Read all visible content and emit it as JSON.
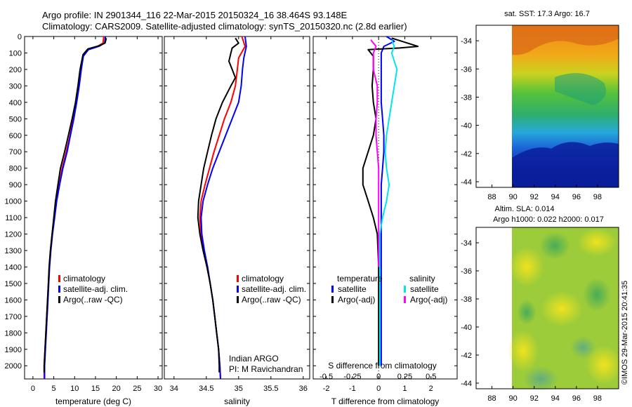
{
  "header": {
    "title_line1": "Argo profile: IN 2901344_116 22-Mar-2015 20150324_16 38.464S 93.148E",
    "title_line2": "Climatology: CARS2009. Satellite-adjusted climatology: synTS_20150320.nc (2.8d earlier)"
  },
  "credit": "©IMOS 29-Mar-2015 20:41:35",
  "colors": {
    "climatology": "#ff0000",
    "satellite": "#0000ff",
    "argo": "#000000",
    "salinity_sat": "#00e5ee",
    "salinity_argo": "#ff00ff"
  },
  "chart_data": [
    {
      "type": "line",
      "id": "temperature",
      "xlabel": "temperature (deg C)",
      "ylabel": "",
      "xlim": [
        -2,
        31
      ],
      "ylim": [
        2080,
        0
      ],
      "xticks": [
        "0",
        "5",
        "10",
        "15",
        "20",
        "25",
        "30"
      ],
      "yticks": [
        "0",
        "100",
        "200",
        "300",
        "400",
        "500",
        "600",
        "700",
        "800",
        "900",
        "1000",
        "1100",
        "1200",
        "1300",
        "1400",
        "1500",
        "1600",
        "1700",
        "1800",
        "1900",
        "2000"
      ],
      "legend": [
        "climatology",
        "satellite-adj. clim.",
        "Argo(..raw -QC)"
      ],
      "series": [
        {
          "name": "climatology",
          "color": "#ff0000",
          "points": [
            [
              17.0,
              0
            ],
            [
              16.8,
              40
            ],
            [
              15.5,
              60
            ],
            [
              13.0,
              80
            ],
            [
              12.0,
              120
            ],
            [
              11.5,
              200
            ],
            [
              11.0,
              300
            ],
            [
              10.4,
              400
            ],
            [
              9.6,
              500
            ],
            [
              8.9,
              600
            ],
            [
              8.0,
              700
            ],
            [
              7.0,
              800
            ],
            [
              6.3,
              900
            ],
            [
              5.6,
              1000
            ],
            [
              5.1,
              1100
            ],
            [
              4.6,
              1200
            ],
            [
              4.2,
              1300
            ],
            [
              3.9,
              1400
            ],
            [
              3.7,
              1500
            ],
            [
              3.5,
              1600
            ],
            [
              3.3,
              1700
            ],
            [
              3.1,
              1800
            ],
            [
              2.9,
              1900
            ],
            [
              2.7,
              2000
            ],
            [
              2.7,
              2080
            ]
          ]
        },
        {
          "name": "satellite-adj. clim.",
          "color": "#0000ff",
          "points": [
            [
              17.4,
              0
            ],
            [
              17.2,
              40
            ],
            [
              15.8,
              60
            ],
            [
              13.3,
              80
            ],
            [
              12.1,
              120
            ],
            [
              11.6,
              200
            ],
            [
              11.1,
              300
            ],
            [
              10.5,
              400
            ],
            [
              9.8,
              500
            ],
            [
              9.0,
              600
            ],
            [
              8.2,
              700
            ],
            [
              7.2,
              800
            ],
            [
              6.4,
              900
            ],
            [
              5.7,
              1000
            ],
            [
              5.2,
              1100
            ],
            [
              4.7,
              1200
            ],
            [
              4.3,
              1300
            ],
            [
              4.0,
              1400
            ],
            [
              3.8,
              1500
            ],
            [
              3.6,
              1600
            ],
            [
              3.4,
              1700
            ],
            [
              3.2,
              1800
            ],
            [
              3.0,
              1900
            ],
            [
              2.8,
              2000
            ],
            [
              2.8,
              2080
            ]
          ]
        },
        {
          "name": "Argo(..raw -QC)",
          "color": "#000000",
          "points": [
            [
              17.6,
              10
            ],
            [
              17.3,
              40
            ],
            [
              16.0,
              55
            ],
            [
              13.2,
              75
            ],
            [
              12.0,
              110
            ],
            [
              11.3,
              200
            ],
            [
              10.8,
              300
            ],
            [
              10.2,
              400
            ],
            [
              9.4,
              500
            ],
            [
              8.5,
              600
            ],
            [
              7.6,
              700
            ],
            [
              6.6,
              800
            ],
            [
              6.0,
              900
            ],
            [
              5.4,
              1000
            ],
            [
              5.0,
              1100
            ],
            [
              4.6,
              1200
            ],
            [
              4.2,
              1300
            ],
            [
              3.9,
              1400
            ],
            [
              3.7,
              1500
            ],
            [
              3.5,
              1600
            ],
            [
              3.3,
              1700
            ],
            [
              3.1,
              1800
            ],
            [
              2.9,
              1900
            ],
            [
              2.7,
              2000
            ],
            [
              2.7,
              2040
            ]
          ]
        }
      ]
    },
    {
      "type": "line",
      "id": "salinity",
      "xlabel": "salinity",
      "ylabel": "",
      "xlim": [
        33.85,
        36.1
      ],
      "ylim": [
        2080,
        0
      ],
      "xticks": [
        "34",
        "34.5",
        "35",
        "35.5",
        "36"
      ],
      "legend": [
        "climatology",
        "satellite-adj. clim.",
        "Argo(..raw -QC)"
      ],
      "annotation": [
        "Indian ARGO",
        "PI: M Ravichandran"
      ],
      "series": [
        {
          "name": "climatology",
          "color": "#ff0000",
          "points": [
            [
              35.05,
              0
            ],
            [
              35.1,
              60
            ],
            [
              35.0,
              130
            ],
            [
              34.98,
              200
            ],
            [
              34.95,
              300
            ],
            [
              34.88,
              400
            ],
            [
              34.78,
              500
            ],
            [
              34.7,
              600
            ],
            [
              34.62,
              700
            ],
            [
              34.55,
              800
            ],
            [
              34.48,
              900
            ],
            [
              34.42,
              1000
            ],
            [
              34.4,
              1100
            ],
            [
              34.42,
              1200
            ],
            [
              34.46,
              1300
            ],
            [
              34.52,
              1400
            ],
            [
              34.56,
              1500
            ],
            [
              34.6,
              1600
            ],
            [
              34.63,
              1700
            ],
            [
              34.66,
              1800
            ],
            [
              34.69,
              1900
            ],
            [
              34.71,
              2000
            ],
            [
              34.72,
              2080
            ]
          ]
        },
        {
          "name": "satellite-adj. clim.",
          "color": "#0000ff",
          "points": [
            [
              35.1,
              0
            ],
            [
              35.12,
              60
            ],
            [
              35.08,
              130
            ],
            [
              35.06,
              200
            ],
            [
              35.04,
              300
            ],
            [
              35.0,
              400
            ],
            [
              34.9,
              500
            ],
            [
              34.8,
              600
            ],
            [
              34.7,
              700
            ],
            [
              34.6,
              800
            ],
            [
              34.52,
              900
            ],
            [
              34.45,
              1000
            ],
            [
              34.42,
              1100
            ],
            [
              34.43,
              1200
            ],
            [
              34.47,
              1300
            ],
            [
              34.52,
              1400
            ],
            [
              34.56,
              1500
            ],
            [
              34.6,
              1600
            ],
            [
              34.63,
              1700
            ],
            [
              34.66,
              1800
            ],
            [
              34.69,
              1900
            ],
            [
              34.71,
              2000
            ],
            [
              34.72,
              2080
            ]
          ]
        },
        {
          "name": "Argo(..raw -QC)",
          "color": "#000000",
          "points": [
            [
              34.95,
              10
            ],
            [
              35.0,
              40
            ],
            [
              34.9,
              70
            ],
            [
              34.88,
              100
            ],
            [
              34.85,
              150
            ],
            [
              34.9,
              200
            ],
            [
              34.95,
              250
            ],
            [
              34.88,
              300
            ],
            [
              34.75,
              400
            ],
            [
              34.65,
              500
            ],
            [
              34.58,
              600
            ],
            [
              34.52,
              700
            ],
            [
              34.46,
              800
            ],
            [
              34.42,
              900
            ],
            [
              34.38,
              1000
            ],
            [
              34.37,
              1100
            ],
            [
              34.4,
              1200
            ],
            [
              34.45,
              1300
            ],
            [
              34.51,
              1400
            ],
            [
              34.56,
              1500
            ],
            [
              34.6,
              1600
            ],
            [
              34.63,
              1700
            ],
            [
              34.66,
              1800
            ],
            [
              34.69,
              1900
            ],
            [
              34.7,
              2000
            ],
            [
              34.7,
              2040
            ]
          ]
        }
      ]
    },
    {
      "type": "line",
      "id": "difference",
      "xlabel": "T difference from climatology",
      "xlabel_top": "S difference from climatology",
      "xlim": [
        -2.5,
        3.0
      ],
      "ylim": [
        2080,
        0
      ],
      "xticks": [
        "-2",
        "-1",
        "0",
        "1",
        "2"
      ],
      "xticks_top": [
        "-0.5",
        "-0.25",
        "0",
        "0.25",
        "0.5"
      ],
      "legend_headers": [
        "temperature",
        "salinity"
      ],
      "legend": [
        "satellite",
        "Argo(-adj)",
        "satellite",
        "Argo(-adj)"
      ],
      "series": [
        {
          "name": "temperature satellite",
          "color": "#0000ff",
          "points": [
            [
              0.3,
              0
            ],
            [
              0.6,
              30
            ],
            [
              0.2,
              60
            ],
            [
              0.1,
              100
            ],
            [
              0.1,
              200
            ],
            [
              0.1,
              300
            ],
            [
              0.1,
              400
            ],
            [
              0.15,
              500
            ],
            [
              0.2,
              600
            ],
            [
              0.2,
              700
            ],
            [
              0.15,
              800
            ],
            [
              0.1,
              900
            ],
            [
              0.1,
              1000
            ],
            [
              0.1,
              1100
            ],
            [
              0.1,
              1200
            ],
            [
              0.1,
              1400
            ],
            [
              0.1,
              1600
            ],
            [
              0.1,
              1800
            ],
            [
              0.1,
              2000
            ]
          ]
        },
        {
          "name": "temperature Argo(-adj)",
          "color": "#000000",
          "points": [
            [
              0.5,
              10
            ],
            [
              1.5,
              60
            ],
            [
              0.8,
              70
            ],
            [
              -0.4,
              80
            ],
            [
              -0.2,
              120
            ],
            [
              -0.2,
              200
            ],
            [
              -0.25,
              300
            ],
            [
              -0.2,
              400
            ],
            [
              -0.1,
              500
            ],
            [
              -0.2,
              600
            ],
            [
              -0.4,
              700
            ],
            [
              -0.6,
              800
            ],
            [
              -0.6,
              900
            ],
            [
              -0.4,
              1000
            ],
            [
              -0.2,
              1100
            ],
            [
              -0.05,
              1200
            ],
            [
              0,
              1400
            ],
            [
              0,
              1600
            ],
            [
              0,
              1800
            ],
            [
              0,
              2000
            ]
          ]
        },
        {
          "name": "salinity satellite",
          "color": "#00e5ee",
          "points": [
            [
              0.5,
              20
            ],
            [
              0.6,
              60
            ],
            [
              0.5,
              100
            ],
            [
              0.7,
              200
            ],
            [
              0.6,
              300
            ],
            [
              0.5,
              400
            ],
            [
              0.4,
              500
            ],
            [
              0.3,
              600
            ],
            [
              0.25,
              700
            ],
            [
              0.3,
              800
            ],
            [
              0.4,
              900
            ],
            [
              0.3,
              1000
            ],
            [
              0.15,
              1100
            ],
            [
              0.05,
              1200
            ],
            [
              0.05,
              1400
            ],
            [
              0.05,
              1600
            ],
            [
              0.05,
              1800
            ],
            [
              0.05,
              2000
            ]
          ]
        },
        {
          "name": "salinity Argo(-adj)",
          "color": "#ff00ff",
          "points": [
            [
              -0.3,
              20
            ],
            [
              -0.1,
              60
            ],
            [
              -0.2,
              100
            ],
            [
              -0.2,
              200
            ],
            [
              -0.05,
              300
            ],
            [
              -0.05,
              400
            ],
            [
              -0.1,
              500
            ],
            [
              -0.1,
              600
            ],
            [
              -0.05,
              700
            ],
            [
              0,
              800
            ],
            [
              0,
              900
            ],
            [
              0,
              1000
            ],
            [
              0,
              1100
            ],
            [
              0,
              1200
            ],
            [
              0,
              1400
            ]
          ]
        }
      ]
    },
    {
      "type": "heatmap",
      "id": "sst-map",
      "title": "sat. SST: 17.3 Argo: 16.7",
      "xlim": [
        86.5,
        100
      ],
      "ylim": [
        -44.4,
        -32.9
      ],
      "xticks": [
        "88",
        "90",
        "92",
        "94",
        "96",
        "98"
      ],
      "yticks": [
        "-34",
        "-36",
        "-38",
        "-40",
        "-42",
        "-44"
      ]
    },
    {
      "type": "heatmap",
      "id": "sla-map",
      "title_line1": "Altim. SLA: 0.014",
      "title_line2": "Argo h1000: 0.022 h2000: 0.017",
      "xlim": [
        86.5,
        100
      ],
      "ylim": [
        -44.4,
        -32.9
      ],
      "xticks": [
        "88",
        "90",
        "92",
        "94",
        "96",
        "98"
      ],
      "yticks": [
        "-34",
        "-36",
        "-38",
        "-40",
        "-42",
        "-44"
      ]
    }
  ]
}
